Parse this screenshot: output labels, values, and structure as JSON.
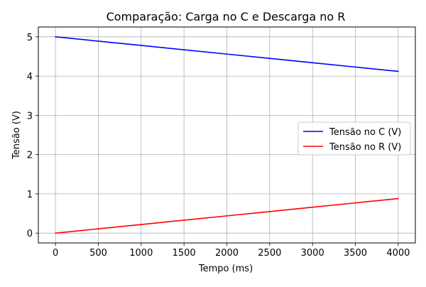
{
  "chart_data": {
    "type": "line",
    "title": "Comparação: Carga no C e Descarga no R",
    "xlabel": "Tempo (ms)",
    "ylabel": "Tensão (V)",
    "xlim": [
      -200,
      4200
    ],
    "ylim": [
      -0.25,
      5.25
    ],
    "xticks": [
      0,
      500,
      1000,
      1500,
      2000,
      2500,
      3000,
      3500,
      4000
    ],
    "yticks": [
      0,
      1,
      2,
      3,
      4,
      5
    ],
    "grid": true,
    "legend_position": "center-right",
    "series": [
      {
        "name": "Tensão no C (V)",
        "color": "#0000ff",
        "x": [
          0,
          500,
          1000,
          1500,
          2000,
          2500,
          3000,
          3500,
          4000
        ],
        "y": [
          5.0,
          4.89,
          4.78,
          4.67,
          4.56,
          4.45,
          4.34,
          4.23,
          4.12
        ]
      },
      {
        "name": "Tensão no R (V)",
        "color": "#ff0000",
        "x": [
          0,
          500,
          1000,
          1500,
          2000,
          2500,
          3000,
          3500,
          4000
        ],
        "y": [
          0.0,
          0.11,
          0.22,
          0.33,
          0.44,
          0.55,
          0.66,
          0.77,
          0.88
        ]
      }
    ]
  }
}
